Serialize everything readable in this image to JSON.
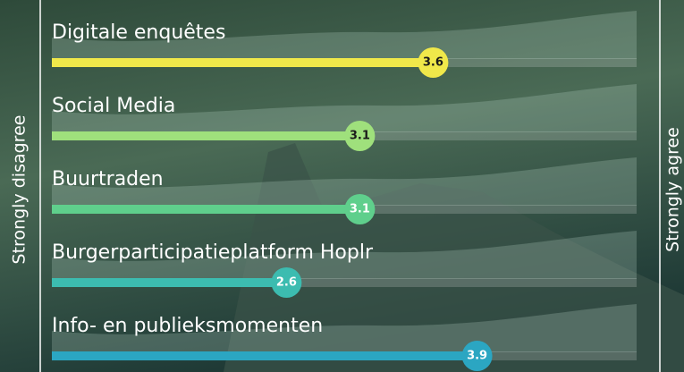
{
  "chart_data": {
    "type": "bar",
    "left_label": "Strongly disagree",
    "right_label": "Strongly agree",
    "categories": [
      "Digitale enquêtes",
      "Social Media",
      "Buurtraden",
      "Burgerparticipatieplatform Hoplr",
      "Info- en publieksmomenten"
    ],
    "values": [
      3.6,
      3.1,
      3.1,
      2.6,
      3.9
    ],
    "colors": [
      "#f0e84a",
      "#9fe07c",
      "#5fcf8c",
      "#3cbcb0",
      "#2ba6c2"
    ],
    "xlim": [
      1,
      5
    ]
  }
}
